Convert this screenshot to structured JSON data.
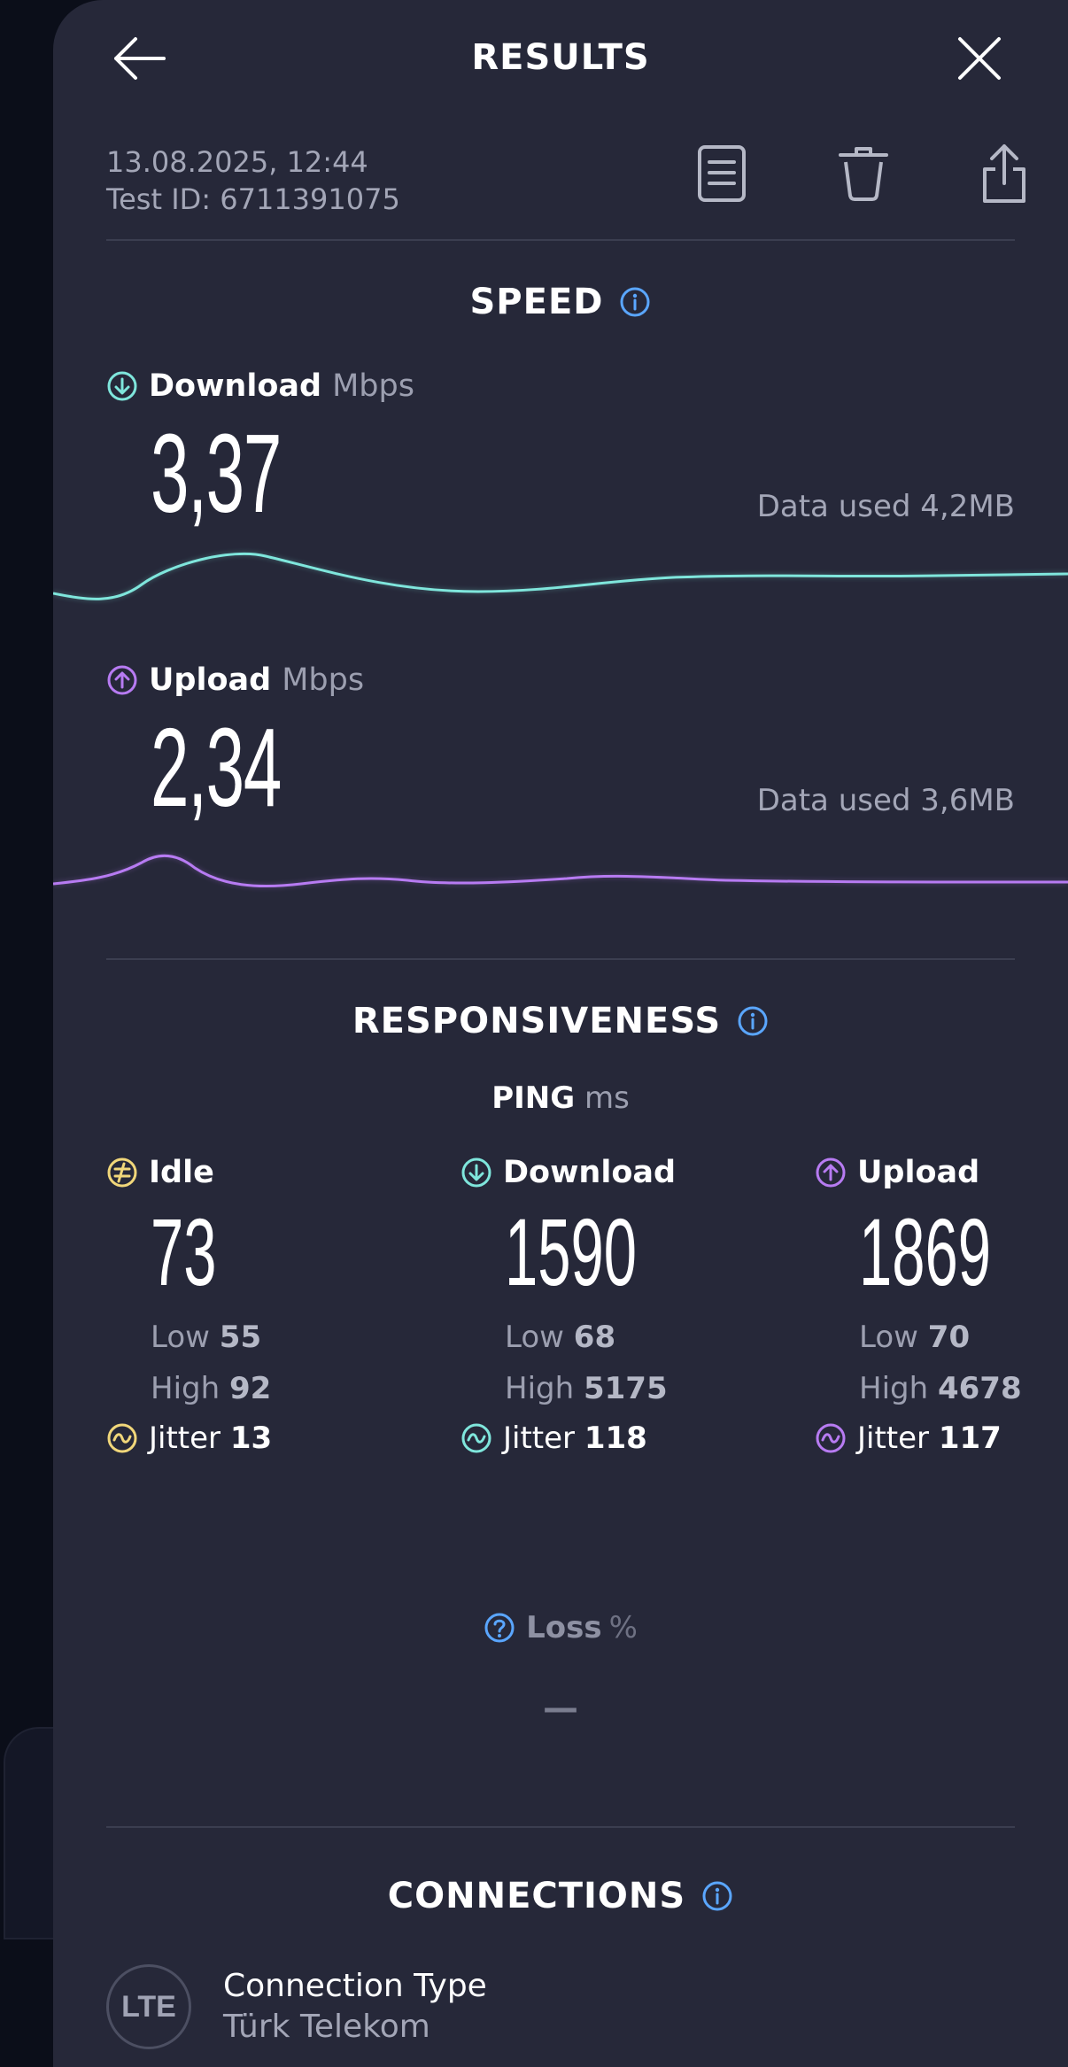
{
  "header": {
    "title": "RESULTS"
  },
  "meta": {
    "datetime": "13.08.2025, 12:44",
    "test_id": "Test ID: 6711391075"
  },
  "speed": {
    "title": "SPEED",
    "download": {
      "label": "Download",
      "unit": "Mbps",
      "value": "3,37",
      "data_used": "Data used 4,2MB",
      "color": "#7fe6dc"
    },
    "upload": {
      "label": "Upload",
      "unit": "Mbps",
      "value": "2,34",
      "data_used": "Data used 3,6MB",
      "color": "#b77bf2"
    }
  },
  "responsiveness": {
    "title": "RESPONSIVENESS",
    "ping_label": "PING",
    "ping_unit": "ms",
    "low_label": "Low",
    "high_label": "High",
    "jitter_label": "Jitter",
    "columns": [
      {
        "label": "Idle",
        "value": "73",
        "low": "55",
        "high": "92",
        "jitter": "13",
        "color": "#f1d77a"
      },
      {
        "label": "Download",
        "value": "1590",
        "low": "68",
        "high": "5175",
        "jitter": "118",
        "color": "#7fe6dc"
      },
      {
        "label": "Upload",
        "value": "1869",
        "low": "70",
        "high": "4678",
        "jitter": "117",
        "color": "#b77bf2"
      }
    ],
    "loss_label": "Loss",
    "loss_unit": "%",
    "loss_value": "—"
  },
  "connections": {
    "title": "CONNECTIONS",
    "badge": "LTE",
    "type_label": "Connection Type",
    "provider": "Türk Telekom"
  }
}
